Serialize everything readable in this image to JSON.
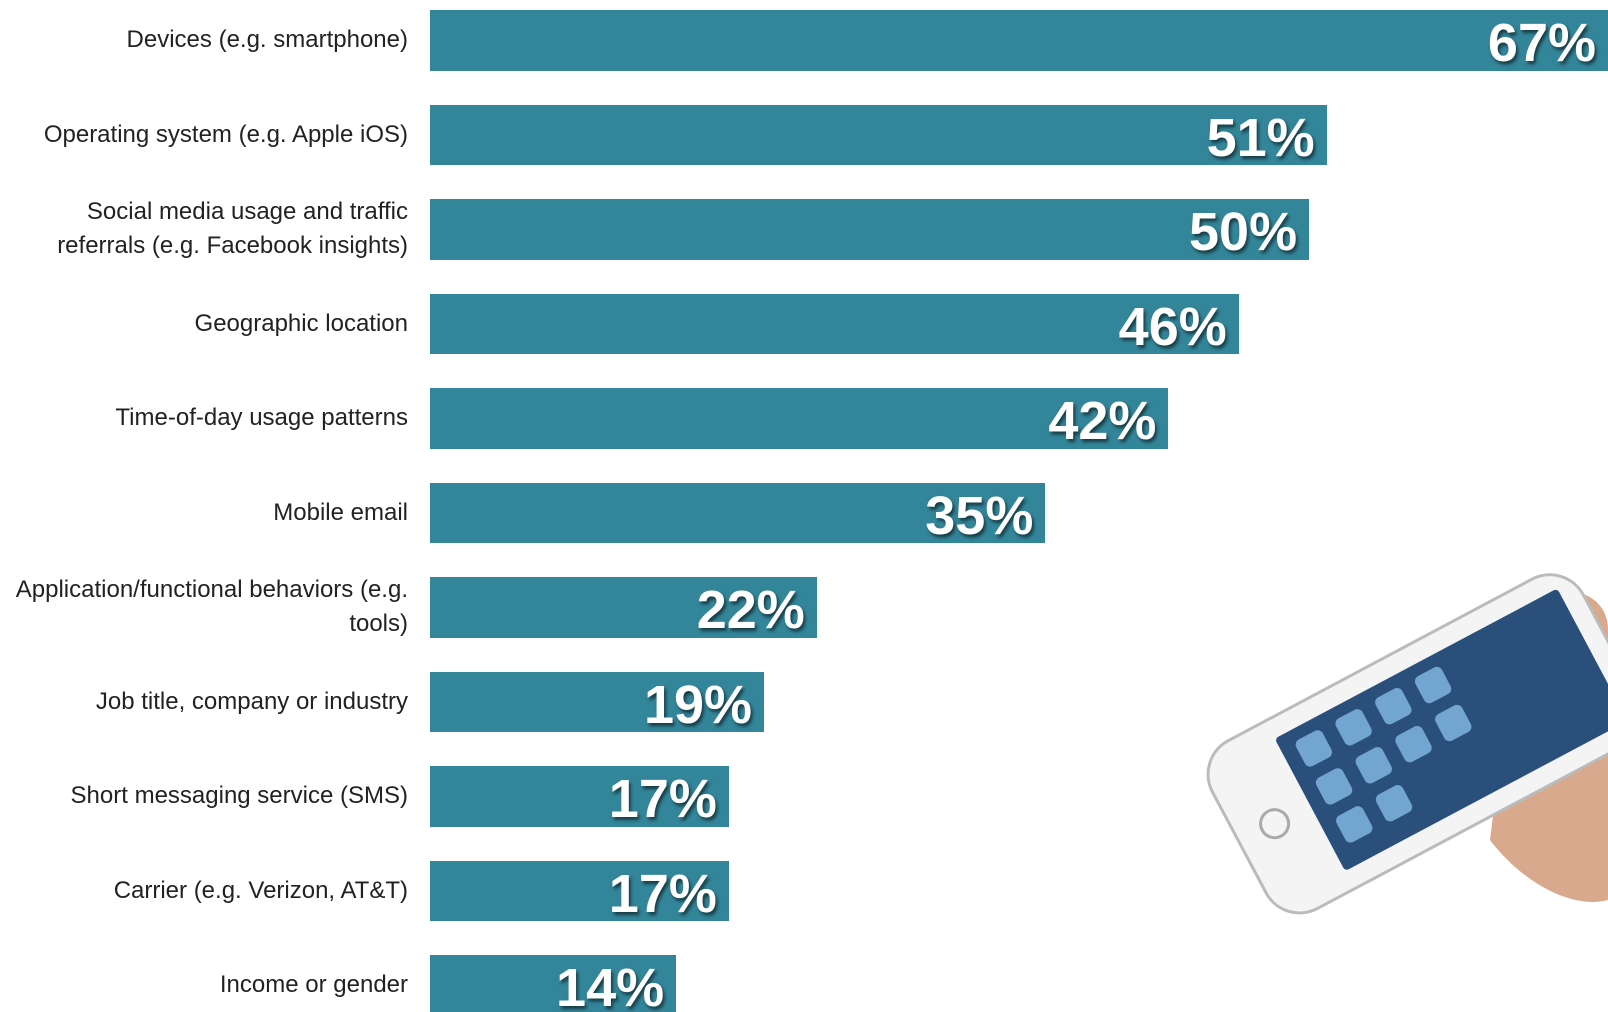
{
  "chart_data": {
    "type": "bar",
    "orientation": "horizontal",
    "categories": [
      "Devices (e.g. smartphone)",
      "Operating system (e.g. Apple iOS)",
      "Social media usage and traffic referrals (e.g. Facebook insights)",
      "Geographic location",
      "Time-of-day usage patterns",
      "Mobile email",
      "Application/functional behaviors (e.g. tools)",
      "Job title, company or industry",
      "Short messaging service (SMS)",
      "Carrier (e.g. Verizon, AT&T)",
      "Income or gender"
    ],
    "values": [
      67,
      51,
      50,
      46,
      42,
      35,
      22,
      19,
      17,
      17,
      14
    ],
    "value_labels": [
      "67%",
      "51%",
      "50%",
      "46%",
      "42%",
      "35%",
      "22%",
      "19%",
      "17%",
      "17%",
      "14%"
    ],
    "color": "#338599",
    "xlim": [
      0,
      67
    ]
  }
}
